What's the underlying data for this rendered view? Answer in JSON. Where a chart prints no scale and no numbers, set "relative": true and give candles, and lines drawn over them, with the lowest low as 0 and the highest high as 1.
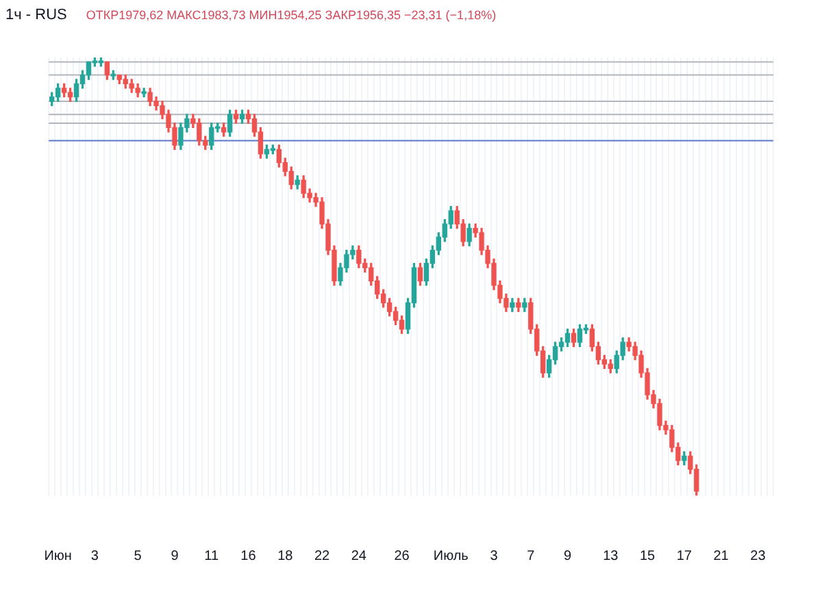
{
  "chart_data": {
    "type": "candlestick",
    "title": "1ч - RUS",
    "annotations": [
      "ОТКР1979,62 МАКС1983,73 МИН1954,25 ЗАКР1956,35 −23,31 (−1,18%)"
    ],
    "relative": true,
    "grid": true,
    "legend": false,
    "categories": [
      null,
      "Июн",
      null,
      null,
      null,
      null,
      null,
      "3",
      null,
      null,
      null,
      null,
      null,
      null,
      "5",
      null,
      null,
      null,
      null,
      null,
      "9",
      null,
      null,
      null,
      null,
      null,
      "11",
      null,
      null,
      null,
      null,
      null,
      "16",
      null,
      null,
      null,
      null,
      null,
      "18",
      null,
      null,
      null,
      null,
      null,
      "22",
      null,
      null,
      null,
      null,
      null,
      "24",
      null,
      null,
      null,
      null,
      null,
      null,
      "26",
      null,
      null,
      null,
      null,
      null,
      null,
      null,
      "Июль",
      null,
      null,
      null,
      null,
      null,
      null,
      "3",
      null,
      null,
      null,
      null,
      null,
      "7",
      null,
      null,
      null,
      null,
      null,
      "9",
      null,
      null,
      null,
      null,
      null,
      null,
      "13",
      null,
      null,
      null,
      null,
      null,
      "15",
      null,
      null,
      null,
      null,
      null,
      "17",
      null,
      null,
      null,
      null,
      null,
      "21",
      null,
      null,
      null,
      null,
      null,
      "23",
      null,
      null
    ],
    "ref_lines": [
      {
        "axis": "y",
        "value": 0.99,
        "color": "#b2b5be"
      },
      {
        "axis": "y",
        "value": 0.96,
        "color": "#b2b5be"
      },
      {
        "axis": "y",
        "value": 0.9,
        "color": "#b2b5be"
      },
      {
        "axis": "y",
        "value": 0.87,
        "color": "#b2b5be"
      },
      {
        "axis": "y",
        "value": 0.85,
        "color": "#b2b5be"
      },
      {
        "axis": "y",
        "value": 0.81,
        "color": "#5b78c9"
      }
    ],
    "ohlc": [
      [
        0.9,
        0.92,
        0.89,
        0.91
      ],
      [
        0.91,
        0.94,
        0.9,
        0.93
      ],
      [
        0.93,
        0.94,
        0.91,
        0.92
      ],
      [
        0.92,
        0.93,
        0.9,
        0.91
      ],
      [
        0.91,
        0.95,
        0.9,
        0.94
      ],
      [
        0.94,
        0.97,
        0.93,
        0.96
      ],
      [
        0.96,
        0.99,
        0.95,
        0.99
      ],
      [
        0.99,
        1,
        0.98,
        0.99
      ],
      [
        0.99,
        1,
        0.98,
        0.99
      ],
      [
        0.99,
        0.99,
        0.95,
        0.96
      ],
      [
        0.96,
        0.97,
        0.95,
        0.96
      ],
      [
        0.96,
        0.96,
        0.94,
        0.95
      ],
      [
        0.95,
        0.96,
        0.93,
        0.94
      ],
      [
        0.94,
        0.95,
        0.92,
        0.93
      ],
      [
        0.93,
        0.94,
        0.91,
        0.92
      ],
      [
        0.92,
        0.93,
        0.91,
        0.92
      ],
      [
        0.92,
        0.93,
        0.89,
        0.9
      ],
      [
        0.9,
        0.91,
        0.88,
        0.89
      ],
      [
        0.89,
        0.9,
        0.86,
        0.87
      ],
      [
        0.87,
        0.88,
        0.83,
        0.84
      ],
      [
        0.84,
        0.85,
        0.79,
        0.8
      ],
      [
        0.8,
        0.85,
        0.79,
        0.84
      ],
      [
        0.84,
        0.87,
        0.83,
        0.86
      ],
      [
        0.86,
        0.87,
        0.84,
        0.85
      ],
      [
        0.85,
        0.86,
        0.8,
        0.81
      ],
      [
        0.81,
        0.82,
        0.79,
        0.8
      ],
      [
        0.8,
        0.85,
        0.79,
        0.84
      ],
      [
        0.84,
        0.85,
        0.83,
        0.84
      ],
      [
        0.84,
        0.85,
        0.82,
        0.83
      ],
      [
        0.83,
        0.88,
        0.82,
        0.87
      ],
      [
        0.87,
        0.88,
        0.85,
        0.86
      ],
      [
        0.86,
        0.88,
        0.85,
        0.87
      ],
      [
        0.87,
        0.88,
        0.85,
        0.86
      ],
      [
        0.86,
        0.87,
        0.82,
        0.83
      ],
      [
        0.83,
        0.84,
        0.77,
        0.78
      ],
      [
        0.78,
        0.8,
        0.77,
        0.79
      ],
      [
        0.79,
        0.8,
        0.78,
        0.79
      ],
      [
        0.79,
        0.8,
        0.75,
        0.76
      ],
      [
        0.76,
        0.77,
        0.73,
        0.74
      ],
      [
        0.74,
        0.75,
        0.7,
        0.71
      ],
      [
        0.71,
        0.73,
        0.7,
        0.72
      ],
      [
        0.72,
        0.73,
        0.68,
        0.69
      ],
      [
        0.69,
        0.7,
        0.67,
        0.68
      ],
      [
        0.68,
        0.69,
        0.66,
        0.67
      ],
      [
        0.67,
        0.68,
        0.61,
        0.62
      ],
      [
        0.62,
        0.63,
        0.55,
        0.56
      ],
      [
        0.56,
        0.57,
        0.48,
        0.49
      ],
      [
        0.49,
        0.53,
        0.48,
        0.52
      ],
      [
        0.52,
        0.56,
        0.51,
        0.55
      ],
      [
        0.55,
        0.57,
        0.54,
        0.56
      ],
      [
        0.56,
        0.57,
        0.52,
        0.53
      ],
      [
        0.53,
        0.54,
        0.51,
        0.52
      ],
      [
        0.52,
        0.53,
        0.48,
        0.49
      ],
      [
        0.49,
        0.5,
        0.45,
        0.46
      ],
      [
        0.46,
        0.47,
        0.43,
        0.44
      ],
      [
        0.44,
        0.45,
        0.41,
        0.42
      ],
      [
        0.42,
        0.43,
        0.39,
        0.4
      ],
      [
        0.4,
        0.41,
        0.37,
        0.38
      ],
      [
        0.38,
        0.45,
        0.37,
        0.44
      ],
      [
        0.44,
        0.53,
        0.43,
        0.52
      ],
      [
        0.52,
        0.53,
        0.48,
        0.49
      ],
      [
        0.49,
        0.54,
        0.48,
        0.53
      ],
      [
        0.53,
        0.57,
        0.52,
        0.56
      ],
      [
        0.56,
        0.6,
        0.55,
        0.59
      ],
      [
        0.59,
        0.63,
        0.58,
        0.62
      ],
      [
        0.62,
        0.66,
        0.61,
        0.65
      ],
      [
        0.65,
        0.66,
        0.61,
        0.62
      ],
      [
        0.62,
        0.63,
        0.57,
        0.58
      ],
      [
        0.58,
        0.62,
        0.57,
        0.61
      ],
      [
        0.61,
        0.62,
        0.59,
        0.6
      ],
      [
        0.6,
        0.61,
        0.55,
        0.56
      ],
      [
        0.56,
        0.57,
        0.52,
        0.53
      ],
      [
        0.53,
        0.54,
        0.47,
        0.48
      ],
      [
        0.48,
        0.49,
        0.44,
        0.45
      ],
      [
        0.45,
        0.46,
        0.42,
        0.43
      ],
      [
        0.43,
        0.45,
        0.42,
        0.44
      ],
      [
        0.44,
        0.45,
        0.42,
        0.43
      ],
      [
        0.43,
        0.45,
        0.42,
        0.44
      ],
      [
        0.44,
        0.45,
        0.37,
        0.38
      ],
      [
        0.38,
        0.39,
        0.32,
        0.33
      ],
      [
        0.33,
        0.34,
        0.27,
        0.28
      ],
      [
        0.28,
        0.32,
        0.27,
        0.31
      ],
      [
        0.31,
        0.35,
        0.3,
        0.34
      ],
      [
        0.34,
        0.36,
        0.33,
        0.35
      ],
      [
        0.35,
        0.38,
        0.34,
        0.37
      ],
      [
        0.37,
        0.38,
        0.34,
        0.35
      ],
      [
        0.35,
        0.39,
        0.34,
        0.38
      ],
      [
        0.38,
        0.39,
        0.37,
        0.38
      ],
      [
        0.38,
        0.39,
        0.33,
        0.34
      ],
      [
        0.34,
        0.35,
        0.3,
        0.31
      ],
      [
        0.31,
        0.32,
        0.29,
        0.3
      ],
      [
        0.3,
        0.31,
        0.28,
        0.29
      ],
      [
        0.29,
        0.33,
        0.28,
        0.32
      ],
      [
        0.32,
        0.36,
        0.31,
        0.35
      ],
      [
        0.35,
        0.36,
        0.33,
        0.34
      ],
      [
        0.34,
        0.35,
        0.31,
        0.32
      ],
      [
        0.32,
        0.33,
        0.27,
        0.28
      ],
      [
        0.28,
        0.29,
        0.22,
        0.23
      ],
      [
        0.23,
        0.24,
        0.2,
        0.21
      ],
      [
        0.21,
        0.22,
        0.15,
        0.16
      ],
      [
        0.16,
        0.17,
        0.14,
        0.15
      ],
      [
        0.15,
        0.16,
        0.1,
        0.11
      ],
      [
        0.11,
        0.12,
        0.07,
        0.08
      ],
      [
        0.08,
        0.1,
        0.07,
        0.09
      ],
      [
        0.09,
        0.1,
        0.05,
        0.06
      ],
      [
        0.06,
        0.07,
        0,
        0.01
      ],
      null,
      null,
      null,
      null,
      null,
      null,
      null,
      null,
      null,
      null,
      null,
      null
    ]
  }
}
